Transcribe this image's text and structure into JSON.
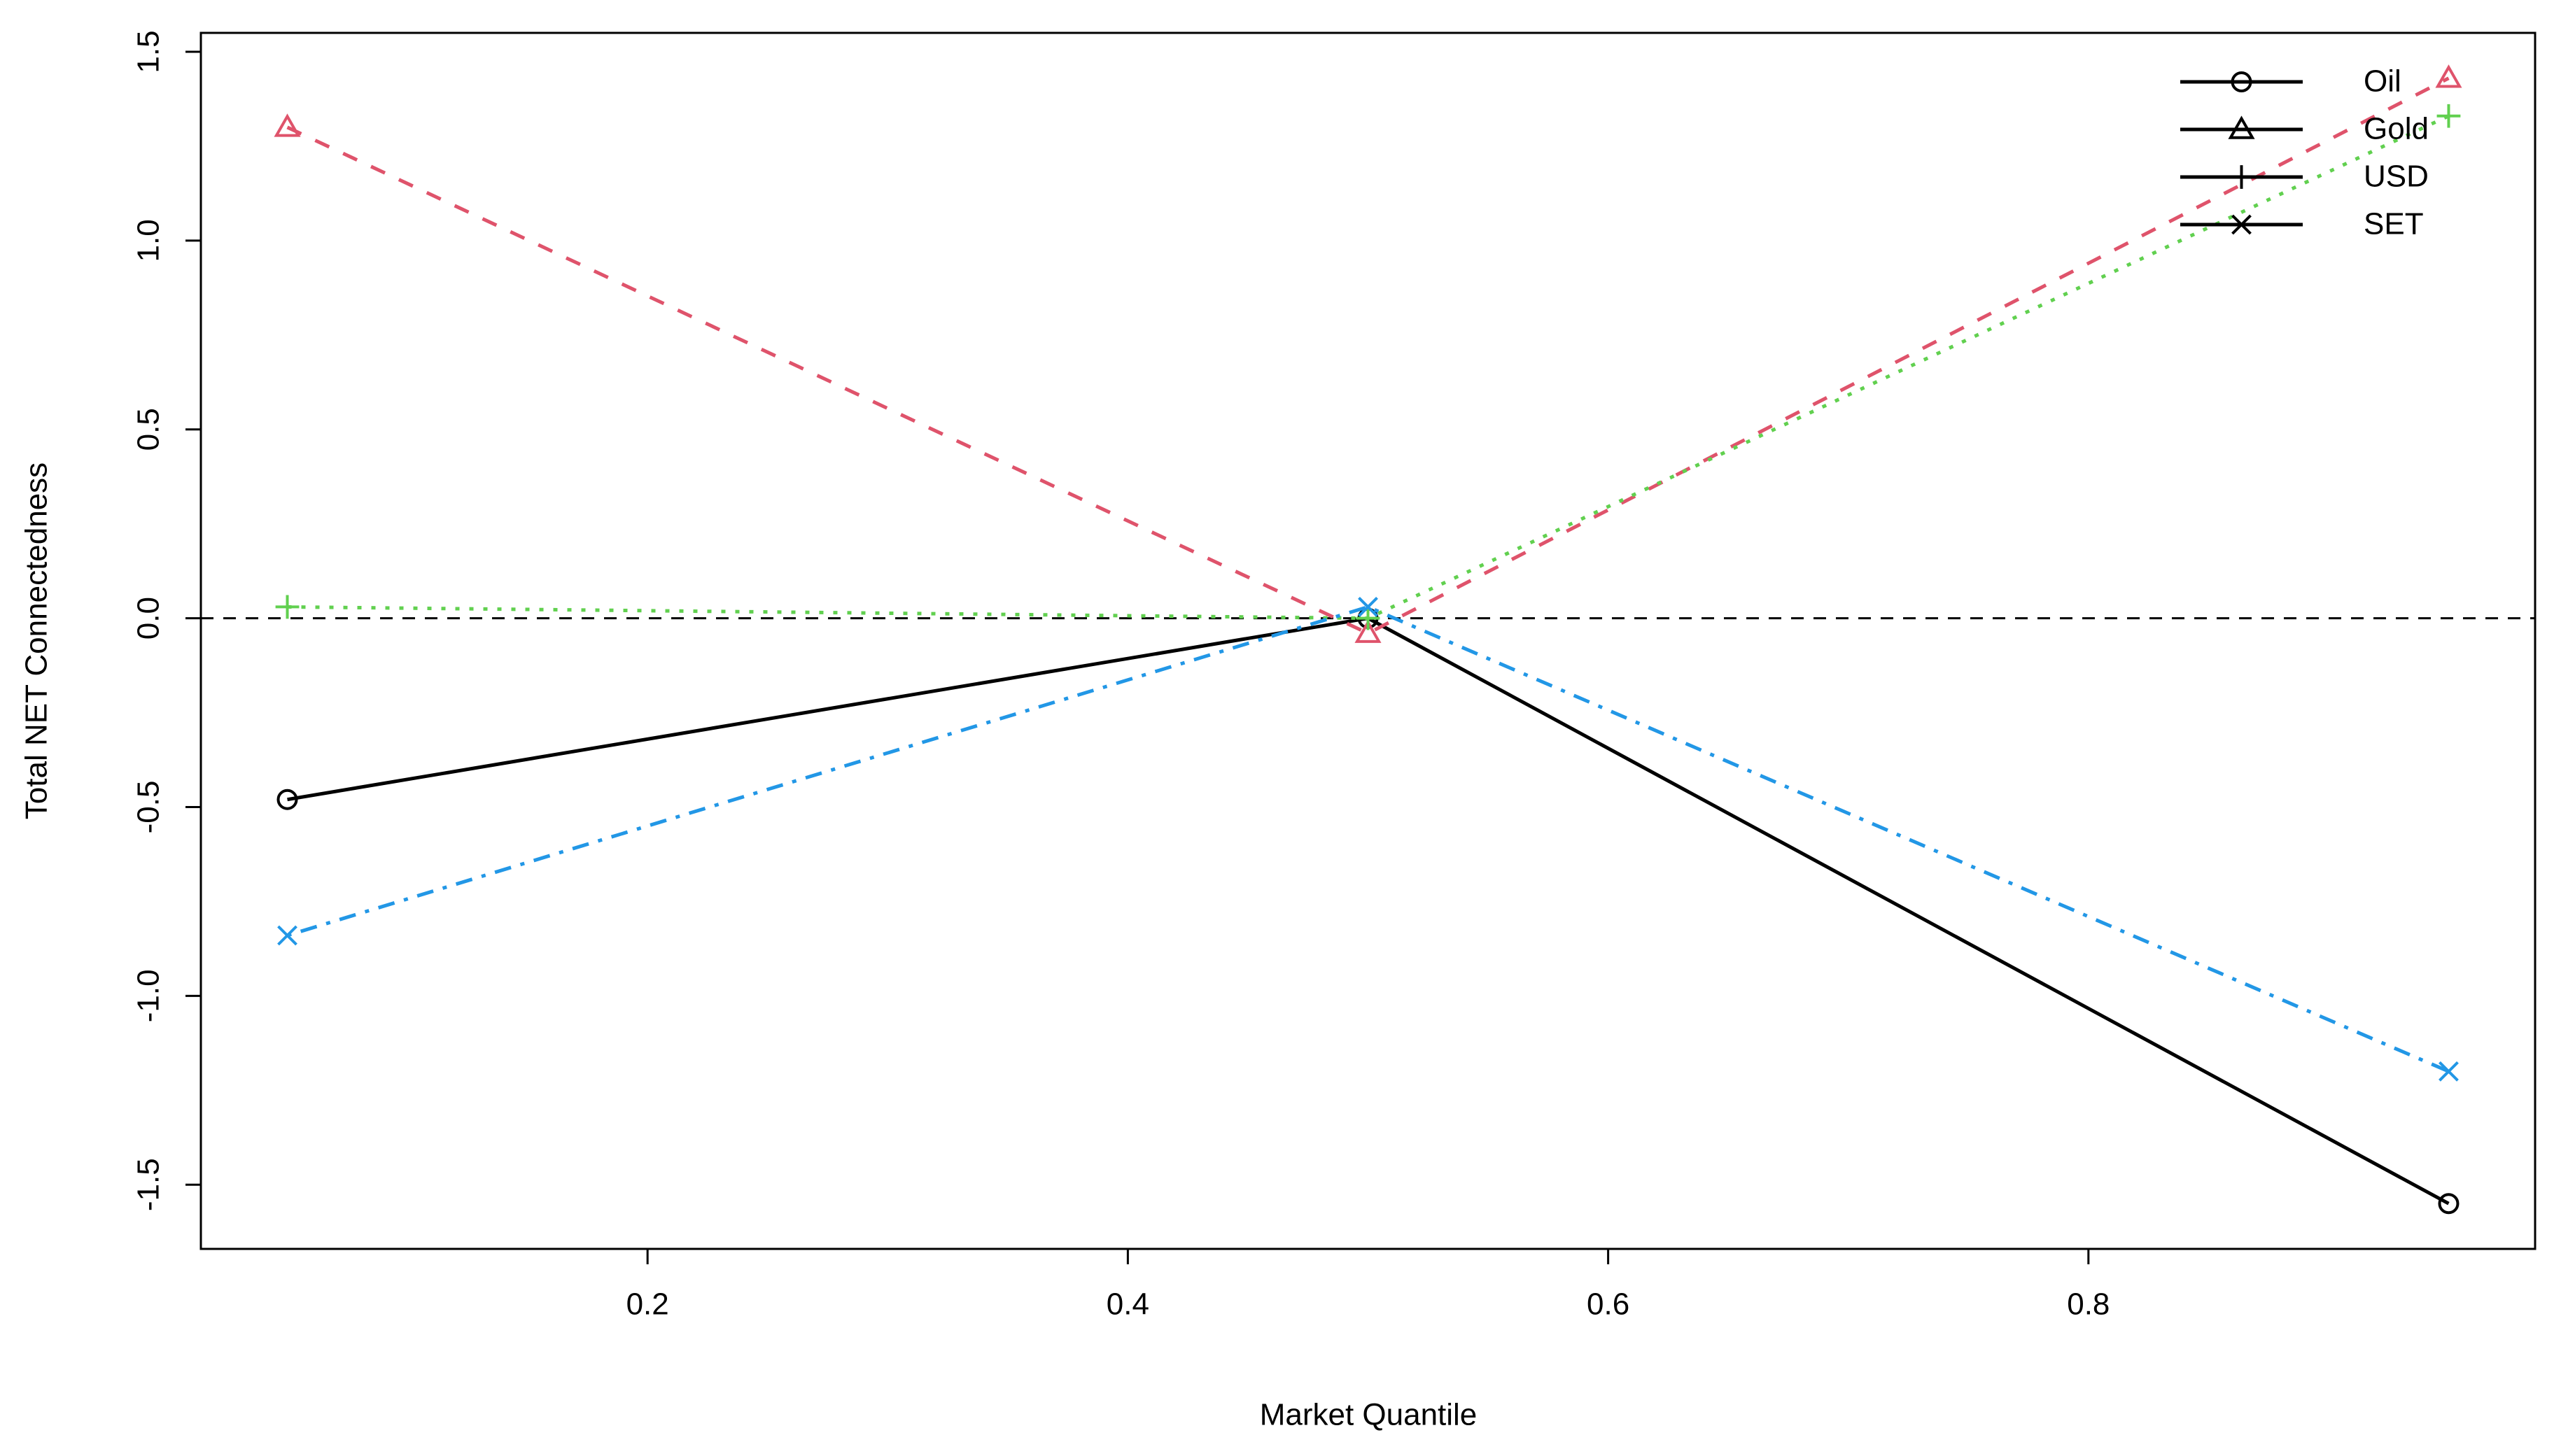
{
  "chart_data": {
    "type": "line",
    "xlabel": "Market Quantile",
    "ylabel": "Total NET Connectedness",
    "x": [
      0.05,
      0.5,
      0.95
    ],
    "series": [
      {
        "name": "Oil",
        "color": "#000000",
        "dash": "solid",
        "marker": "circle",
        "values": [
          -0.48,
          0.0,
          -1.55
        ]
      },
      {
        "name": "Gold",
        "color": "#DF536B",
        "dash": "dashed",
        "marker": "triangle",
        "values": [
          1.3,
          -0.04,
          1.43
        ]
      },
      {
        "name": "USD",
        "color": "#61D04F",
        "dash": "dotted",
        "marker": "plus",
        "values": [
          0.03,
          0.0,
          1.33
        ]
      },
      {
        "name": "SET",
        "color": "#2297E6",
        "dash": "dotdash",
        "marker": "cross",
        "values": [
          -0.84,
          0.03,
          -1.2
        ]
      }
    ],
    "xlim": [
      0.014,
      0.986
    ],
    "ylim": [
      -1.67,
      1.55
    ],
    "xticks": [
      0.2,
      0.4,
      0.6,
      0.8
    ],
    "yticks": [
      {
        "value": -1.5,
        "label": "-1.5"
      },
      {
        "value": -1,
        "label": "-1.0"
      },
      {
        "value": -0.5,
        "label": "-0.5"
      },
      {
        "value": 0,
        "label": "0.0"
      },
      {
        "value": 0.5,
        "label": "0.5"
      },
      {
        "value": 1,
        "label": "1.0"
      },
      {
        "value": 1.5,
        "label": "1.5"
      }
    ],
    "hline": 0,
    "legend_position": "top-right",
    "legend_color": "#000000",
    "grid": false
  }
}
